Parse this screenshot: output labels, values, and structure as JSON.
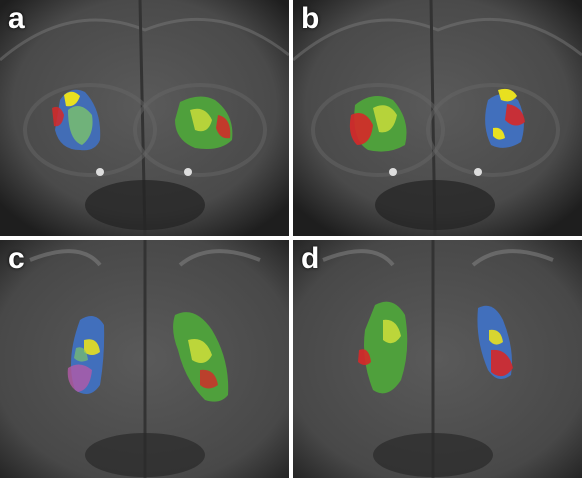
{
  "panels": [
    {
      "label": "a"
    },
    {
      "label": "b"
    },
    {
      "label": "c"
    },
    {
      "label": "d"
    }
  ],
  "colors": {
    "blue": "#3f72c8",
    "green": "#4fa83a",
    "yellow": "#e8e020",
    "red": "#d62828",
    "magenta": "#b35aa8",
    "divider": "#ffffff",
    "mri_dark": "#2b2b2b",
    "mri_light": "#6e6e6e"
  }
}
